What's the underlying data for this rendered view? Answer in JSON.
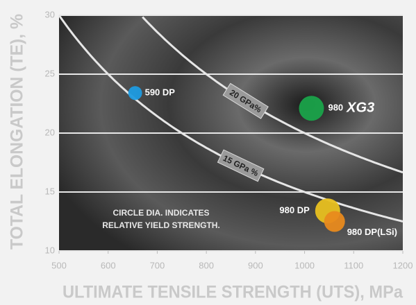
{
  "chart_data": {
    "type": "scatter",
    "xlabel": "ULTIMATE TENSILE STRENGTH (UTS), MPa",
    "ylabel": "TOTAL ELONGATION (TE), %",
    "xlim": [
      500,
      1200
    ],
    "xticks": [
      500,
      600,
      700,
      800,
      900,
      1000,
      1100,
      1200
    ],
    "ylim": [
      10,
      30
    ],
    "yticks": [
      10,
      15,
      20,
      25,
      30
    ],
    "grid": true,
    "points": [
      {
        "label": "590 DP",
        "x": 655,
        "y": 23.4,
        "size": 20,
        "color": "#1e9be0"
      },
      {
        "label": "980",
        "brand": "XG3",
        "x": 1014,
        "y": 22.1,
        "size": 36,
        "color": "#1aa34a"
      },
      {
        "label": "980 DP",
        "x": 1047,
        "y": 13.4,
        "size": 36,
        "color": "#e8c020"
      },
      {
        "label": "980 DP(LSi)",
        "x": 1061,
        "y": 12.5,
        "size": 30,
        "color": "#e88a1e"
      }
    ],
    "curves": [
      {
        "label": "20 GPa%",
        "product": 20000
      },
      {
        "label": "15 GPa %",
        "product": 15000
      }
    ],
    "annotation": [
      "CIRCLE DIA. INDICATES",
      "RELATIVE YIELD STRENGTH."
    ]
  }
}
